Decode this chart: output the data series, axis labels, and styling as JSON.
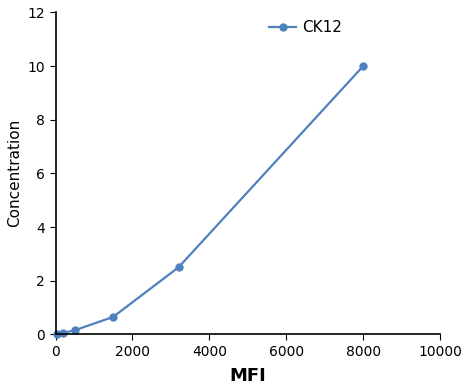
{
  "x": [
    50,
    200,
    500,
    1500,
    3200,
    8000
  ],
  "y": [
    0.0,
    0.05,
    0.15,
    0.65,
    2.5,
    10.0
  ],
  "line_color": "#4F81BD",
  "marker": "o",
  "marker_size": 5,
  "line_width": 1.6,
  "xlabel": "MFI",
  "ylabel": "Concentration",
  "xlabel_fontsize": 13,
  "ylabel_fontsize": 11,
  "xlabel_fontweight": "bold",
  "ylabel_fontweight": "normal",
  "xlim": [
    0,
    10000
  ],
  "ylim": [
    0,
    12
  ],
  "xticks": [
    0,
    2000,
    4000,
    6000,
    8000,
    10000
  ],
  "yticks": [
    0,
    2,
    4,
    6,
    8,
    10,
    12
  ],
  "legend_label": "CK12",
  "legend_fontsize": 11,
  "legend_loc": "upper center",
  "tick_fontsize": 10,
  "background_color": "#ffffff",
  "spine_color": "#000000"
}
